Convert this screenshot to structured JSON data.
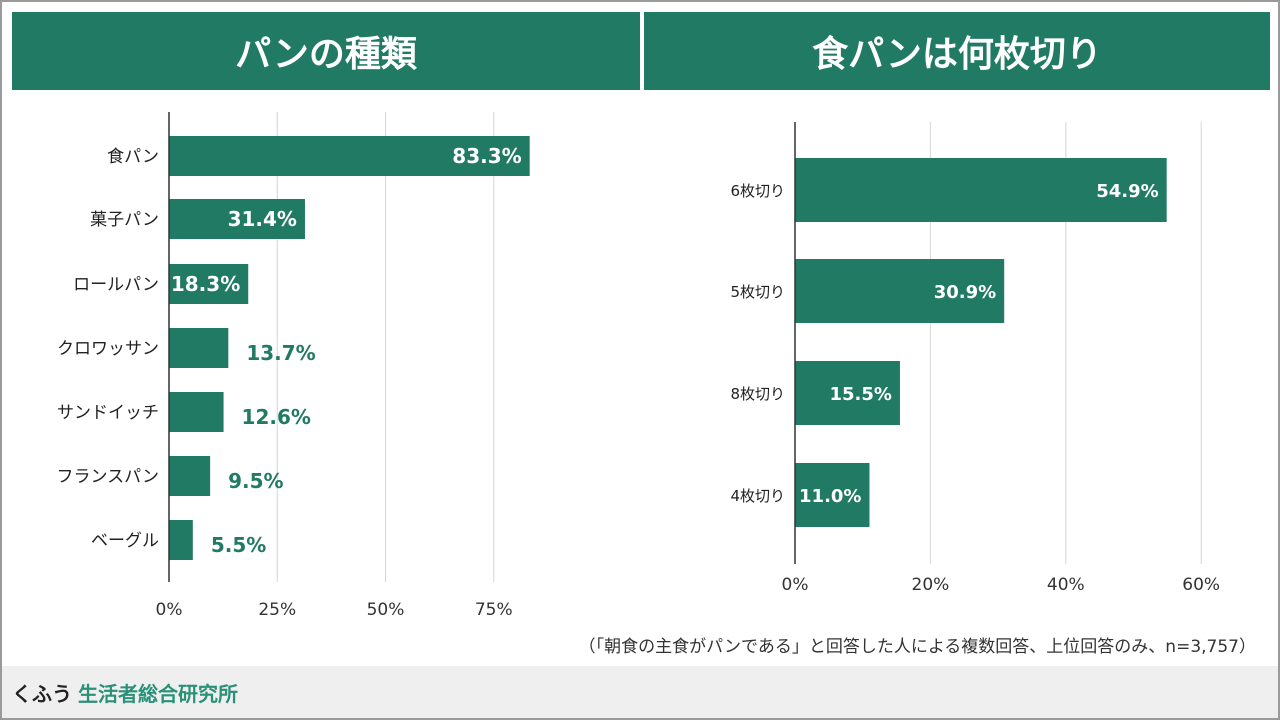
{
  "colors": {
    "bar": "#217a63",
    "grid": "#d6d6d6",
    "axis": "#333333"
  },
  "chart_data": [
    {
      "type": "bar",
      "orientation": "horizontal",
      "title": "パンの種類",
      "categories": [
        "食パン",
        "菓子パン",
        "ロールパン",
        "クロワッサン",
        "サンドイッチ",
        "フランスパン",
        "ベーグル"
      ],
      "values": [
        83.3,
        31.4,
        18.3,
        13.7,
        12.6,
        9.5,
        5.5
      ],
      "value_labels": [
        "83.3%",
        "31.4%",
        "18.3%",
        "13.7%",
        "12.6%",
        "9.5%",
        "5.5%"
      ],
      "xlim": [
        0,
        100
      ],
      "ticks": [
        0,
        25,
        50,
        75
      ],
      "tick_labels": [
        "0%",
        "25%",
        "50%",
        "75%"
      ],
      "grid": true
    },
    {
      "type": "bar",
      "orientation": "horizontal",
      "title": "食パンは何枚切り",
      "categories": [
        "6枚切り",
        "5枚切り",
        "8枚切り",
        "4枚切り"
      ],
      "values": [
        54.9,
        30.9,
        15.5,
        11.0
      ],
      "value_labels": [
        "54.9%",
        "30.9%",
        "15.5%",
        "11.0%"
      ],
      "xlim": [
        0,
        70
      ],
      "ticks": [
        0,
        20,
        40,
        60
      ],
      "tick_labels": [
        "0%",
        "20%",
        "40%",
        "60%"
      ],
      "grid": true
    }
  ],
  "note": "（「朝食の主食がパンである」と回答した人による複数回答、上位回答のみ、n=3,757）",
  "footer": {
    "brand": "くふう",
    "org": "生活者総合研究所"
  }
}
